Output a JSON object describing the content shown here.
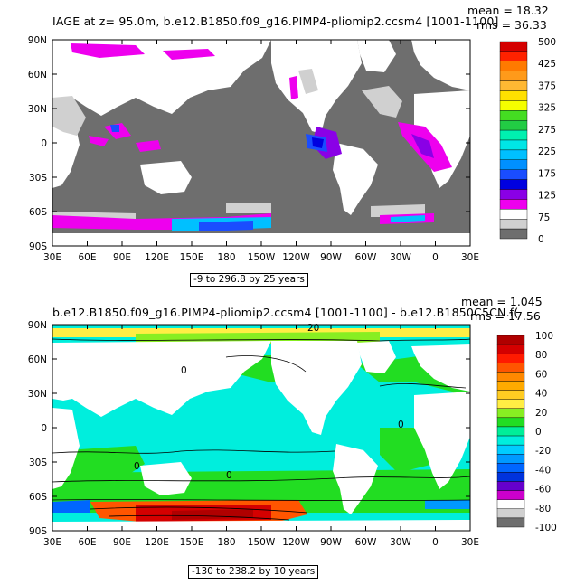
{
  "maps": [
    {
      "title": "IAGE at z=  95.0m, b.e12.B1850.f09_g16.PIMP4-pliomip2.ccsm4 [1001-1100]",
      "mean": "mean = 18.32",
      "rms": "rms = 36.33",
      "range_text": "-9 to 296.8 by 25 years",
      "lat_labels": [
        "90N",
        "60N",
        "30N",
        "0",
        "30S",
        "60S",
        "90S"
      ],
      "lon_labels": [
        "30E",
        "60E",
        "90E",
        "120E",
        "150E",
        "180",
        "150W",
        "120W",
        "90W",
        "60W",
        "30W",
        "0",
        "30E"
      ],
      "colorbar": {
        "labels": [
          "500",
          "425",
          "375",
          "325",
          "275",
          "225",
          "175",
          "125",
          "75",
          "0"
        ],
        "colors": [
          "#d40000",
          "#ff2200",
          "#ff7a00",
          "#ff9a1a",
          "#ffb833",
          "#ffe000",
          "#f5ff00",
          "#44dd22",
          "#22cc44",
          "#00f0b0",
          "#00e6e6",
          "#00c0ff",
          "#0090ff",
          "#1a4dff",
          "#0000e0",
          "#8a00e6",
          "#ee00ee",
          "#ffffff",
          "#d0d0d0",
          "#6e6e6e"
        ]
      }
    },
    {
      "title": "b.e12.B1850.f09_g16.PIMP4-pliomip2.ccsm4 [1001-1100] - b.e12.B1850C5CN.f(",
      "mean": "mean = 1.045",
      "rms": "rms = 17.56",
      "range_text": "-130 to 238.2 by 10 years",
      "lat_labels": [
        "90N",
        "60N",
        "30N",
        "0",
        "30S",
        "60S",
        "90S"
      ],
      "lon_labels": [
        "30E",
        "60E",
        "90E",
        "120E",
        "150E",
        "180",
        "150W",
        "120W",
        "90W",
        "60W",
        "30W",
        "0",
        "30E"
      ],
      "contour_labels": [
        "20",
        "0",
        "0",
        "0",
        "0"
      ],
      "colorbar": {
        "labels": [
          "100",
          "80",
          "60",
          "40",
          "20",
          "0",
          "-20",
          "-40",
          "-60",
          "-80",
          "-100"
        ],
        "colors": [
          "#b00000",
          "#d40000",
          "#ff1a00",
          "#ff5500",
          "#ff8800",
          "#ffaa00",
          "#ffcc22",
          "#ffee44",
          "#88ee22",
          "#22dd22",
          "#00ee99",
          "#00eedd",
          "#00ccff",
          "#0099ff",
          "#0066ff",
          "#0033dd",
          "#6600cc",
          "#cc00cc",
          "#ffffff",
          "#d0d0d0",
          "#6e6e6e"
        ]
      }
    }
  ]
}
